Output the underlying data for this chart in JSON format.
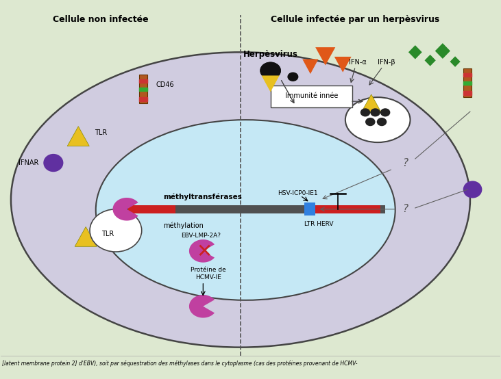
{
  "bg_color": "#dde8d0",
  "cell_color": "#d0cce0",
  "nucleus_color": "#c5e8f5",
  "title_left": "Cellule non infectée",
  "title_right": "Cellule infectée par un herpèsvirus",
  "herpesvirus_label": "Herpèsvirus",
  "caption": "[latent membrane protein 2] d'EBV), soit par séquestration des méthylases dans le cytoplasme (cas des protéines provenant de HCMV-",
  "methyltransferases_label": "méthyltransférases",
  "methylation_label": "méthylation",
  "hsv_label": "HSV-ICP0-IE1",
  "ltr_label": "LTR HERV",
  "ebv_label": "EBV-LMP-2A?",
  "hcmv_label": "Protéine de\nHCMV-IE",
  "innee_label": "Immunité innée",
  "ifna_label": "IFN-α",
  "ifnb_label": "IFN-β",
  "cd46_label": "CD46",
  "tlr_label1": "TLR",
  "tlr_label2": "TLR",
  "ifnar_label": "IFNAR",
  "q_mark": "?",
  "green_color": "#2a8a2a",
  "orange_color": "#e05818",
  "yellow_color": "#e8c020",
  "purple_color": "#6030a0",
  "pink_color": "#c040a0",
  "red_color": "#cc2020",
  "blue_color": "#3080e0",
  "brown_color": "#b05820",
  "dark_gray": "#404040",
  "arrow_color": "#606060"
}
